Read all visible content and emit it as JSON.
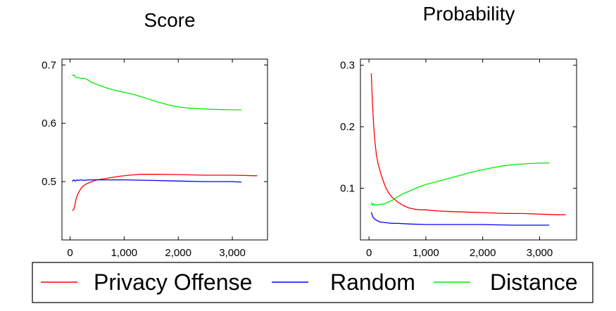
{
  "chart_data": [
    {
      "type": "line",
      "title": "Score",
      "xlabel": "",
      "ylabel": "",
      "xlim": [
        -150,
        3650
      ],
      "ylim": [
        0.4,
        0.71
      ],
      "xticks": [
        0,
        1000,
        2000,
        3000
      ],
      "xtick_labels": [
        "0",
        "1,000",
        "2,000",
        "3,000"
      ],
      "yticks": [
        0.5,
        0.6,
        0.7
      ],
      "ytick_labels": [
        "0.5",
        "0.6",
        "0.7"
      ],
      "grid": false,
      "series": [
        {
          "name": "Privacy Offense",
          "color": "#ff0000",
          "points": [
            [
              40,
              0.45
            ],
            [
              70,
              0.452
            ],
            [
              90,
              0.46
            ],
            [
              110,
              0.47
            ],
            [
              140,
              0.478
            ],
            [
              170,
              0.483
            ],
            [
              200,
              0.488
            ],
            [
              250,
              0.493
            ],
            [
              300,
              0.496
            ],
            [
              400,
              0.5
            ],
            [
              500,
              0.503
            ],
            [
              700,
              0.506
            ],
            [
              900,
              0.509
            ],
            [
              1100,
              0.511
            ],
            [
              1300,
              0.5125
            ],
            [
              1600,
              0.5125
            ],
            [
              2000,
              0.512
            ],
            [
              2500,
              0.511
            ],
            [
              3000,
              0.511
            ],
            [
              3460,
              0.51
            ]
          ]
        },
        {
          "name": "Random",
          "color": "#0000ff",
          "points": [
            [
              40,
              0.5
            ],
            [
              70,
              0.503
            ],
            [
              100,
              0.501
            ],
            [
              130,
              0.503
            ],
            [
              160,
              0.502
            ],
            [
              200,
              0.503
            ],
            [
              260,
              0.502
            ],
            [
              330,
              0.503
            ],
            [
              400,
              0.503
            ],
            [
              500,
              0.503
            ],
            [
              700,
              0.503
            ],
            [
              1000,
              0.503
            ],
            [
              1500,
              0.502
            ],
            [
              2000,
              0.501
            ],
            [
              2500,
              0.5
            ],
            [
              3000,
              0.5
            ],
            [
              3170,
              0.499
            ]
          ]
        },
        {
          "name": "Distance",
          "color": "#00ee00",
          "points": [
            [
              40,
              0.682
            ],
            [
              70,
              0.683
            ],
            [
              100,
              0.679
            ],
            [
              150,
              0.678
            ],
            [
              200,
              0.677
            ],
            [
              250,
              0.677
            ],
            [
              300,
              0.676
            ],
            [
              400,
              0.67
            ],
            [
              600,
              0.663
            ],
            [
              800,
              0.657
            ],
            [
              1000,
              0.653
            ],
            [
              1200,
              0.649
            ],
            [
              1400,
              0.643
            ],
            [
              1600,
              0.637
            ],
            [
              1800,
              0.632
            ],
            [
              2000,
              0.628
            ],
            [
              2200,
              0.626
            ],
            [
              2400,
              0.625
            ],
            [
              2600,
              0.624
            ],
            [
              2800,
              0.6235
            ],
            [
              3000,
              0.623
            ],
            [
              3170,
              0.623
            ]
          ]
        }
      ]
    },
    {
      "type": "line",
      "title": "Probability",
      "xlabel": "",
      "ylabel": "",
      "xlim": [
        -150,
        3650
      ],
      "ylim": [
        0.016,
        0.31
      ],
      "xticks": [
        0,
        1000,
        2000,
        3000
      ],
      "xtick_labels": [
        "0",
        "1,000",
        "2,000",
        "3,000"
      ],
      "yticks": [
        0.1,
        0.2,
        0.3
      ],
      "ytick_labels": [
        "0.1",
        "0.2",
        "0.3"
      ],
      "grid": false,
      "series": [
        {
          "name": "Privacy Offense",
          "color": "#ff0000",
          "points": [
            [
              40,
              0.287
            ],
            [
              60,
              0.24
            ],
            [
              80,
              0.205
            ],
            [
              100,
              0.18
            ],
            [
              130,
              0.155
            ],
            [
              160,
              0.14
            ],
            [
              200,
              0.126
            ],
            [
              250,
              0.112
            ],
            [
              300,
              0.1
            ],
            [
              350,
              0.092
            ],
            [
              400,
              0.086
            ],
            [
              500,
              0.078
            ],
            [
              600,
              0.072
            ],
            [
              700,
              0.068
            ],
            [
              800,
              0.066
            ],
            [
              900,
              0.065
            ],
            [
              1000,
              0.065
            ],
            [
              1200,
              0.063
            ],
            [
              1500,
              0.062
            ],
            [
              1800,
              0.061
            ],
            [
              2100,
              0.06
            ],
            [
              2400,
              0.059
            ],
            [
              2700,
              0.059
            ],
            [
              3000,
              0.058
            ],
            [
              3300,
              0.057
            ],
            [
              3460,
              0.057
            ]
          ]
        },
        {
          "name": "Random",
          "color": "#0000ff",
          "points": [
            [
              40,
              0.061
            ],
            [
              70,
              0.053
            ],
            [
              100,
              0.05
            ],
            [
              150,
              0.047
            ],
            [
              200,
              0.045
            ],
            [
              300,
              0.044
            ],
            [
              400,
              0.043
            ],
            [
              500,
              0.043
            ],
            [
              700,
              0.042
            ],
            [
              1000,
              0.041
            ],
            [
              1500,
              0.041
            ],
            [
              2000,
              0.041
            ],
            [
              2500,
              0.04
            ],
            [
              3000,
              0.04
            ],
            [
              3170,
              0.04
            ]
          ]
        },
        {
          "name": "Distance",
          "color": "#00ee00",
          "points": [
            [
              40,
              0.077
            ],
            [
              60,
              0.072
            ],
            [
              80,
              0.075
            ],
            [
              100,
              0.073
            ],
            [
              150,
              0.073
            ],
            [
              200,
              0.074
            ],
            [
              250,
              0.074
            ],
            [
              300,
              0.076
            ],
            [
              400,
              0.08
            ],
            [
              500,
              0.086
            ],
            [
              600,
              0.091
            ],
            [
              700,
              0.095
            ],
            [
              800,
              0.099
            ],
            [
              900,
              0.103
            ],
            [
              1000,
              0.106
            ],
            [
              1200,
              0.111
            ],
            [
              1400,
              0.116
            ],
            [
              1600,
              0.121
            ],
            [
              1800,
              0.126
            ],
            [
              2000,
              0.13
            ],
            [
              2200,
              0.134
            ],
            [
              2400,
              0.137
            ],
            [
              2600,
              0.139
            ],
            [
              2800,
              0.14
            ],
            [
              3000,
              0.141
            ],
            [
              3170,
              0.141
            ]
          ]
        }
      ]
    }
  ],
  "legend": {
    "placement": "bottom",
    "items": [
      {
        "label": "Privacy Offense",
        "color": "#ff0000"
      },
      {
        "label": "Random",
        "color": "#0000ff"
      },
      {
        "label": "Distance",
        "color": "#00ee00"
      }
    ]
  }
}
